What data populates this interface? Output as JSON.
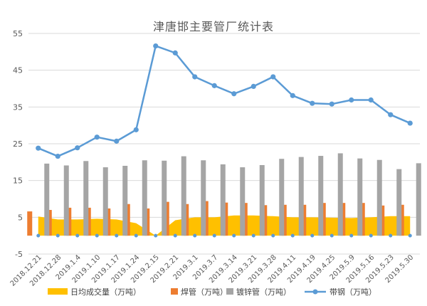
{
  "chart_data": {
    "type": "bar",
    "title": "津唐邯主要管厂统计表",
    "categories": [
      "2018.12.21",
      "2018.12.28",
      "2019.1.4",
      "2019.1.10",
      "2019.1.17",
      "2019.1.24",
      "2019.2.15",
      "2019.2.21",
      "2019.3.1",
      "2019.3.7",
      "2019.3.14",
      "2019.3.21",
      "2019.3.28",
      "2019.4.11",
      "2019.4.19",
      "2019.4.25",
      "2019.5.9",
      "2019.5.16",
      "2019.5.23",
      "2019.5.30"
    ],
    "y_ticks": [
      "-5",
      "5",
      "15",
      "25",
      "35",
      "45",
      "55"
    ],
    "ylim": [
      -5,
      55
    ],
    "grid": true,
    "legend_position": "bottom",
    "series": [
      {
        "name": "日均成交量（万吨）",
        "type": "area",
        "color": "#FFC000",
        "values": [
          5.2,
          4.4,
          4.4,
          4.6,
          4.4,
          3.4,
          0.0,
          4.2,
          5.0,
          5.0,
          5.5,
          5.5,
          5.3,
          5.0,
          5.0,
          4.9,
          4.8,
          5.0,
          5.3,
          5.3
        ]
      },
      {
        "name": "焊管（万吨）",
        "type": "bar",
        "color": "#ED7D31",
        "values": [
          6.6,
          7.0,
          7.6,
          7.6,
          7.4,
          8.6,
          7.4,
          9.2,
          8.6,
          9.4,
          9.0,
          8.9,
          8.3,
          8.4,
          8.4,
          8.9,
          8.9,
          8.9,
          8.2,
          8.4
        ]
      },
      {
        "name": "镀锌管（万吨）",
        "type": "bar",
        "color": "#A5A5A5",
        "values": [
          19.6,
          19.1,
          20.3,
          18.6,
          19.0,
          20.5,
          20.4,
          21.6,
          20.5,
          19.4,
          18.6,
          19.2,
          20.9,
          21.4,
          21.7,
          22.4,
          21.0,
          20.6,
          18.1,
          19.7
        ]
      },
      {
        "name": "带钢（万吨）",
        "type": "line",
        "color": "#5B9BD5",
        "values": [
          23.8,
          21.6,
          23.9,
          26.8,
          25.7,
          28.8,
          51.6,
          49.7,
          43.2,
          40.8,
          38.6,
          40.6,
          43.2,
          38.1,
          36.0,
          35.8,
          36.9,
          36.9,
          32.9,
          30.6
        ]
      }
    ]
  }
}
